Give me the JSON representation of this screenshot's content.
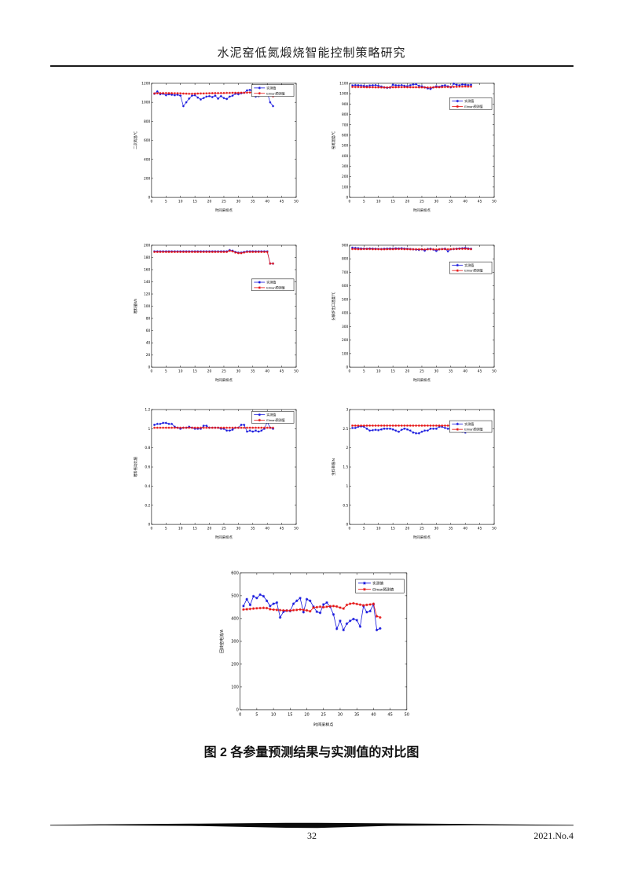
{
  "page": {
    "header_title": "水泥窑低氮煅烧智能控制策略研究",
    "caption": "图 2 各参量预测结果与实测值的对比图",
    "page_number": "32",
    "issue_label": "2021.No.4"
  },
  "legend": {
    "measured_label": "实测值",
    "predicted_label": "Elman预测值"
  },
  "colors": {
    "measured": "#1414dd",
    "predicted": "#e51212",
    "axis": "#000000"
  },
  "chart_data": [
    {
      "type": "line",
      "name": "secondary-air-temp",
      "xlabel": "时间采样点",
      "ylabel": "二次风温/℃",
      "xlim": [
        0,
        50
      ],
      "xtick": 5,
      "ylim": [
        0,
        1200
      ],
      "ytick": 200,
      "legend_position": "top-right",
      "legend_y": 0.005,
      "x_start": 1,
      "series": [
        {
          "name": "实测值",
          "values": [
            1090,
            1115,
            1085,
            1090,
            1075,
            1085,
            1080,
            1075,
            1080,
            1070,
            960,
            1000,
            1040,
            1070,
            1075,
            1050,
            1030,
            1045,
            1060,
            1065,
            1055,
            1070,
            1040,
            1065,
            1045,
            1035,
            1060,
            1070,
            1090,
            1085,
            1095,
            1100,
            1125,
            1130,
            1115,
            1060,
            1065,
            1085,
            1090,
            1100,
            1000,
            960
          ]
        },
        {
          "name": "Elman预测值",
          "values": [
            1093,
            1095,
            1096,
            1097,
            1097,
            1096,
            1096,
            1095,
            1095,
            1094,
            1092,
            1091,
            1090,
            1090,
            1091,
            1092,
            1093,
            1093,
            1094,
            1095,
            1096,
            1097,
            1097,
            1098,
            1098,
            1099,
            1099,
            1100,
            1100,
            1100,
            1101,
            1101,
            1102,
            1103,
            1103,
            1102,
            1101,
            1101,
            1103,
            1105,
            1080,
            1062
          ]
        }
      ]
    },
    {
      "type": "line",
      "name": "kiln-tail-temp",
      "xlabel": "时间采样点",
      "ylabel": "窑尾温度/℃",
      "xlim": [
        0,
        50
      ],
      "xtick": 5,
      "ylim": [
        0,
        1100
      ],
      "ytick": 100,
      "legend_position": "top-right",
      "legend_y": 0.12,
      "x_start": 1,
      "series": [
        {
          "name": "实测值",
          "values": [
            1080,
            1083,
            1081,
            1079,
            1076,
            1073,
            1079,
            1081,
            1083,
            1076,
            1069,
            1061,
            1056,
            1059,
            1086,
            1081,
            1079,
            1083,
            1076,
            1073,
            1081,
            1089,
            1091,
            1076,
            1071,
            1061,
            1051,
            1046,
            1061,
            1071,
            1066,
            1076,
            1081,
            1071,
            1061,
            1096,
            1086,
            1081,
            1089,
            1086,
            1083,
            1085
          ]
        },
        {
          "name": "Elman预测值",
          "values": [
            1065,
            1064,
            1064,
            1063,
            1063,
            1062,
            1062,
            1062,
            1061,
            1061,
            1060,
            1060,
            1060,
            1061,
            1062,
            1062,
            1063,
            1063,
            1063,
            1062,
            1062,
            1062,
            1062,
            1061,
            1061,
            1060,
            1060,
            1060,
            1061,
            1062,
            1062,
            1063,
            1064,
            1064,
            1065,
            1066,
            1067,
            1068,
            1068,
            1069,
            1068,
            1068
          ]
        }
      ]
    },
    {
      "type": "line",
      "name": "feed-rate",
      "xlabel": "时间采样点",
      "ylabel": "喂料量/t/h",
      "xlim": [
        0,
        50
      ],
      "xtick": 5,
      "ylim": [
        0,
        200
      ],
      "ytick": 20,
      "legend_position": "right",
      "legend_y": 0.27,
      "x_start": 1,
      "series": [
        {
          "name": "实测值",
          "values": [
            190,
            190,
            190,
            190,
            190,
            190,
            190,
            190,
            190,
            190,
            190,
            190,
            190,
            190,
            190,
            190,
            190,
            190,
            190,
            190,
            190,
            190,
            190,
            190,
            190,
            190,
            192,
            191,
            189,
            188,
            188,
            189,
            190,
            190,
            190,
            190,
            190,
            190,
            190,
            190,
            170,
            170
          ]
        },
        {
          "name": "Elman预测值",
          "values": [
            189,
            189,
            189,
            189,
            189,
            189,
            189,
            189,
            189,
            189,
            189,
            189,
            189,
            189,
            189,
            189,
            189,
            189,
            189,
            189,
            189,
            189,
            189,
            189,
            189,
            189,
            191,
            190,
            188,
            187,
            187,
            188,
            189,
            189,
            189,
            189,
            189,
            189,
            189,
            189,
            170,
            170
          ]
        }
      ]
    },
    {
      "type": "line",
      "name": "calciner-outlet-temp",
      "xlabel": "时间采样点",
      "ylabel": "分解炉出口温度/℃",
      "xlim": [
        0,
        50
      ],
      "xtick": 5,
      "ylim": [
        0,
        900
      ],
      "ytick": 100,
      "legend_position": "top-right",
      "legend_y": 0.13,
      "x_start": 1,
      "series": [
        {
          "name": "实测值",
          "values": [
            882,
            880,
            878,
            876,
            875,
            874,
            876,
            875,
            874,
            873,
            872,
            874,
            875,
            876,
            875,
            877,
            876,
            878,
            875,
            874,
            872,
            870,
            868,
            866,
            870,
            860,
            872,
            874,
            868,
            858,
            870,
            872,
            875,
            855,
            870,
            872,
            874,
            876,
            878,
            880,
            876,
            874
          ]
        },
        {
          "name": "Elman预测值",
          "values": [
            872,
            872,
            871,
            871,
            872,
            872,
            872,
            871,
            871,
            871,
            870,
            870,
            871,
            871,
            871,
            872,
            872,
            872,
            871,
            871,
            870,
            870,
            870,
            870,
            870,
            869,
            870,
            870,
            870,
            869,
            870,
            871,
            871,
            870,
            871,
            872,
            872,
            873,
            873,
            874,
            872,
            871
          ]
        }
      ]
    },
    {
      "type": "line",
      "name": "feed-drive-ratio",
      "xlabel": "时间采样点",
      "ylabel": "喂料拖动比值",
      "xlim": [
        0,
        50
      ],
      "xtick": 5,
      "ylim": [
        0,
        1.2
      ],
      "ytick": 0.2,
      "legend_position": "top-right",
      "legend_y": 0.01,
      "x_start": 1,
      "series": [
        {
          "name": "实测值",
          "values": [
            1.04,
            1.05,
            1.05,
            1.06,
            1.06,
            1.05,
            1.05,
            1.02,
            1.01,
            1.0,
            1.01,
            1.01,
            1.02,
            1.01,
            1.0,
            1.0,
            1.0,
            1.03,
            1.03,
            1.01,
            1.01,
            1.01,
            1.01,
            1.0,
            1.0,
            0.98,
            0.98,
            0.99,
            1.01,
            1.01,
            1.04,
            1.04,
            0.97,
            0.98,
            0.97,
            0.98,
            0.97,
            0.98,
            1.0,
            1.07,
            1.01,
            1.0
          ]
        },
        {
          "name": "Elman预测值",
          "values": [
            1.01,
            1.01,
            1.01,
            1.01,
            1.01,
            1.01,
            1.01,
            1.01,
            1.01,
            1.01,
            1.01,
            1.01,
            1.01,
            1.01,
            1.01,
            1.01,
            1.01,
            1.01,
            1.01,
            1.01,
            1.01,
            1.01,
            1.01,
            1.01,
            1.01,
            1.01,
            1.01,
            1.01,
            1.01,
            1.01,
            1.01,
            1.01,
            1.01,
            1.01,
            1.01,
            1.01,
            1.01,
            1.01,
            1.01,
            1.01,
            1.01,
            1.01
          ]
        }
      ]
    },
    {
      "type": "line",
      "name": "raw-meal-modulus",
      "xlabel": "时间采样点",
      "ylabel": "生料率值/N",
      "xlim": [
        0,
        50
      ],
      "xtick": 5,
      "ylim": [
        0,
        3
      ],
      "ytick": 0.5,
      "legend_position": "top-right",
      "legend_y": 0.09,
      "x_start": 1,
      "series": [
        {
          "name": "实测值",
          "values": [
            2.52,
            2.52,
            2.55,
            2.56,
            2.55,
            2.5,
            2.45,
            2.46,
            2.47,
            2.46,
            2.48,
            2.5,
            2.5,
            2.5,
            2.48,
            2.45,
            2.42,
            2.47,
            2.5,
            2.48,
            2.45,
            2.4,
            2.38,
            2.38,
            2.42,
            2.45,
            2.45,
            2.5,
            2.5,
            2.5,
            2.55,
            2.55,
            2.52,
            2.5,
            2.48,
            2.48,
            2.5,
            2.45,
            2.42,
            2.4,
            2.5,
            2.55
          ]
        },
        {
          "name": "Elman预测值",
          "values": [
            2.58,
            2.58,
            2.58,
            2.58,
            2.58,
            2.58,
            2.58,
            2.58,
            2.58,
            2.58,
            2.58,
            2.58,
            2.58,
            2.58,
            2.58,
            2.58,
            2.58,
            2.58,
            2.58,
            2.58,
            2.58,
            2.58,
            2.58,
            2.58,
            2.58,
            2.58,
            2.58,
            2.58,
            2.58,
            2.58,
            2.58,
            2.58,
            2.58,
            2.58,
            2.58,
            2.58,
            2.58,
            2.58,
            2.58,
            2.58,
            2.57,
            2.57
          ]
        }
      ]
    },
    {
      "type": "line",
      "name": "rotary-kiln-current",
      "xlabel": "时间采样点",
      "ylabel": "回转窑电流/A",
      "xlim": [
        0,
        50
      ],
      "xtick": 5,
      "ylim": [
        0,
        600
      ],
      "ytick": 100,
      "legend_position": "top-right",
      "legend_y": 0.04,
      "x_start": 1,
      "series": [
        {
          "name": "实测值",
          "values": [
            455,
            485,
            460,
            498,
            490,
            505,
            498,
            478,
            455,
            465,
            470,
            405,
            430,
            435,
            433,
            465,
            478,
            490,
            428,
            485,
            478,
            452,
            430,
            425,
            462,
            470,
            452,
            418,
            355,
            390,
            350,
            378,
            390,
            398,
            393,
            365,
            455,
            428,
            433,
            462,
            350,
            357
          ]
        },
        {
          "name": "Elman预测值",
          "values": [
            440,
            441,
            442,
            444,
            445,
            446,
            447,
            446,
            441,
            439,
            438,
            437,
            436,
            435,
            435,
            437,
            438,
            440,
            438,
            436,
            432,
            448,
            450,
            452,
            450,
            452,
            454,
            455,
            453,
            448,
            444,
            460,
            465,
            467,
            464,
            461,
            458,
            460,
            462,
            465,
            410,
            405
          ]
        }
      ]
    }
  ]
}
